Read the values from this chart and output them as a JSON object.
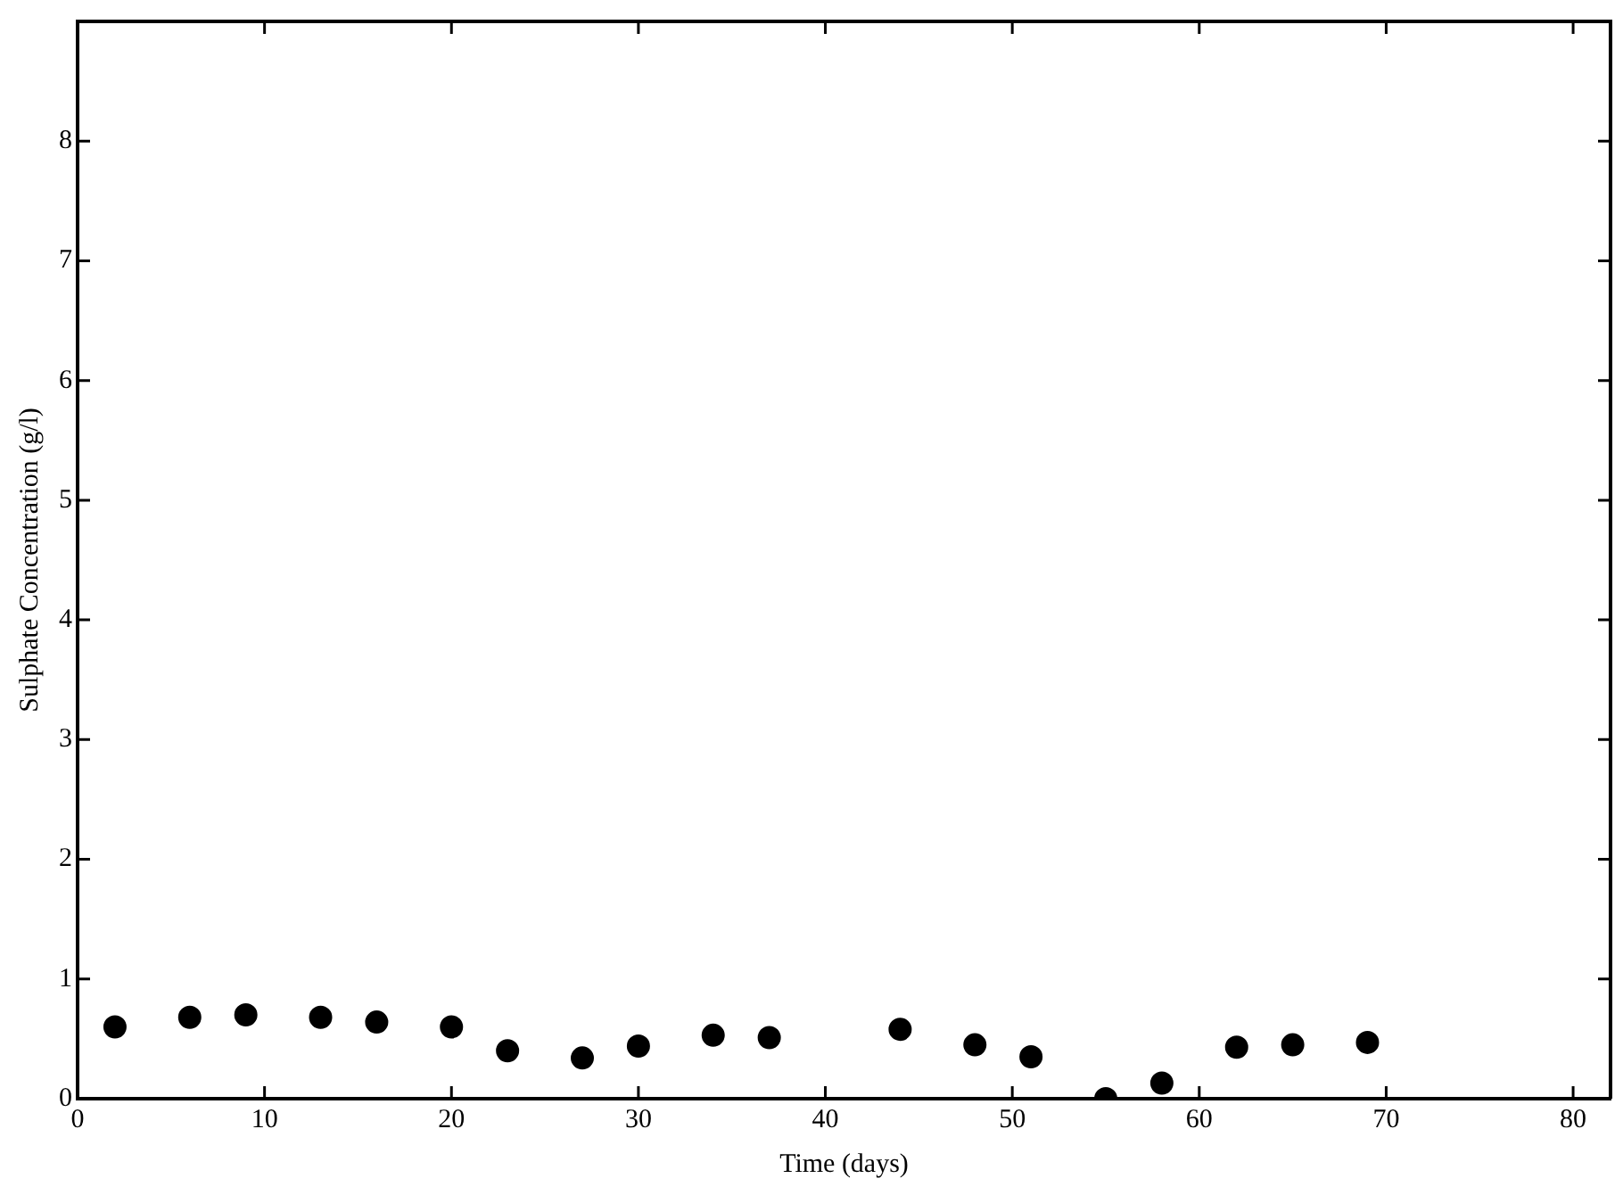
{
  "chart_data": {
    "type": "scatter",
    "xlabel": "Time (days)",
    "ylabel": "Sulphate Concentration (g/l)",
    "x": [
      2,
      6,
      9,
      13,
      16,
      20,
      23,
      27,
      30,
      34,
      37,
      44,
      48,
      51,
      55,
      58,
      62,
      65,
      69
    ],
    "values": [
      0.6,
      0.68,
      0.7,
      0.68,
      0.64,
      0.6,
      0.4,
      0.34,
      0.44,
      0.53,
      0.51,
      0.58,
      0.45,
      0.35,
      0.0,
      0.13,
      0.43,
      0.45,
      0.47
    ],
    "color": "#000000",
    "marker": "circle",
    "xlim": [
      0,
      82
    ],
    "xticks": [
      0,
      10,
      20,
      30,
      40,
      50,
      60,
      70,
      80
    ],
    "ylim": [
      0,
      9
    ],
    "yticks": [
      0,
      1,
      2,
      3,
      4,
      5,
      6,
      7,
      8
    ],
    "grid": false,
    "legend": false
  }
}
